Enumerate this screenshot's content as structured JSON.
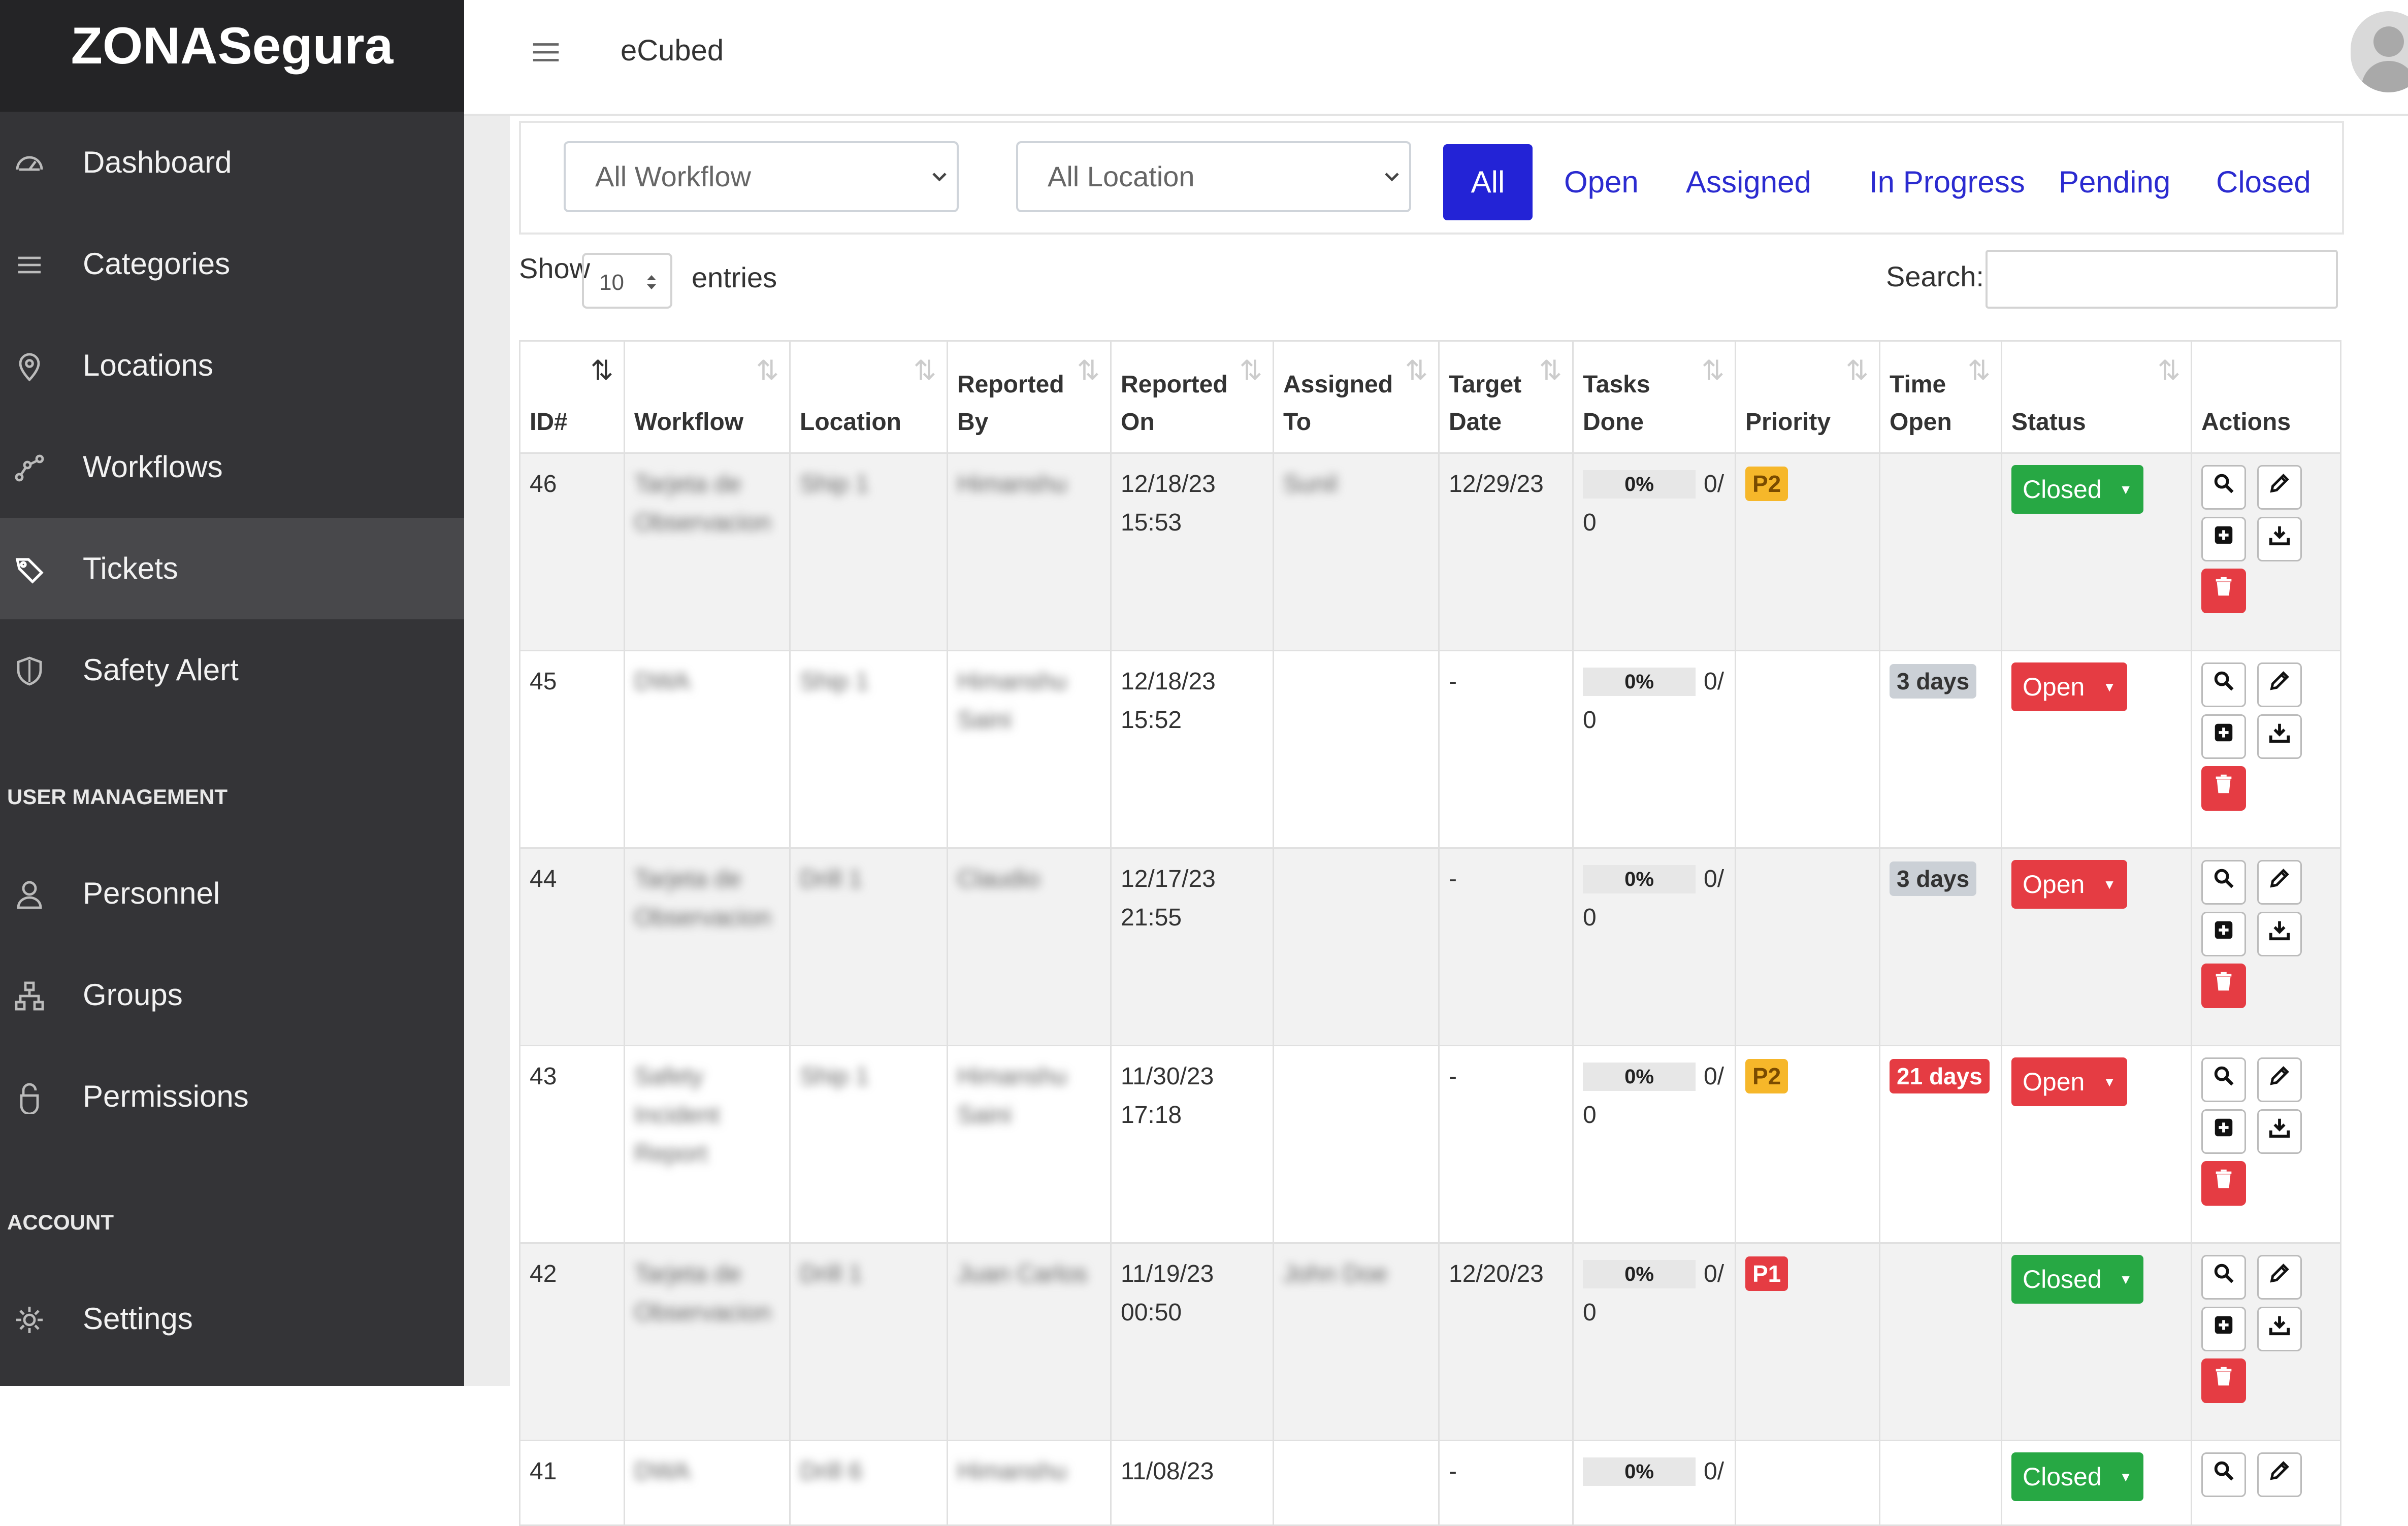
{
  "app": {
    "brand": "ZONASegura",
    "org": "eCubed"
  },
  "sidebar": {
    "items": [
      {
        "label": "Dashboard",
        "icon": "dashboard-icon"
      },
      {
        "label": "Categories",
        "icon": "list-icon"
      },
      {
        "label": "Locations",
        "icon": "map-pin-icon"
      },
      {
        "label": "Workflows",
        "icon": "workflow-icon"
      },
      {
        "label": "Tickets",
        "icon": "tags-icon",
        "active": true
      },
      {
        "label": "Safety Alert",
        "icon": "shield-icon"
      }
    ],
    "user_heading": "USER MANAGEMENT",
    "user_items": [
      {
        "label": "Personnel",
        "icon": "person-icon"
      },
      {
        "label": "Groups",
        "icon": "groups-icon"
      },
      {
        "label": "Permissions",
        "icon": "lock-icon"
      }
    ],
    "account_heading": "ACCOUNT",
    "account_items": [
      {
        "label": "Settings",
        "icon": "gear-icon"
      }
    ]
  },
  "filters": {
    "workflow": "All Workflow",
    "location": "All Location",
    "tabs": [
      "All",
      "Open",
      "Assigned",
      "In Progress",
      "Pending",
      "Closed"
    ],
    "active_tab": "All"
  },
  "length": {
    "show": "Show",
    "value": "10",
    "entries": "entries"
  },
  "search": {
    "label": "Search:",
    "value": ""
  },
  "table": {
    "headers": [
      [
        "ID#"
      ],
      [
        "Workflow"
      ],
      [
        "Location"
      ],
      [
        "Reported",
        "By"
      ],
      [
        "Reported",
        "On"
      ],
      [
        "Assigned",
        "To"
      ],
      [
        "Target",
        "Date"
      ],
      [
        "Tasks",
        "Done"
      ],
      [
        "Priority"
      ],
      [
        "Time",
        "Open"
      ],
      [
        "Status"
      ],
      [
        "Actions"
      ]
    ],
    "rows": [
      {
        "id": "46",
        "workflow": "Tarjeta de Observacion",
        "location": "Ship 1",
        "reported_by": "Himanshu",
        "reported_on": [
          "12/18/23",
          "15:53"
        ],
        "assigned_to": "Sunil",
        "target_date": "12/29/23",
        "tasks_pct": "0%",
        "tasks_a": "0/",
        "tasks_b": "0",
        "priority": "P2",
        "time_open": "",
        "status": "Closed"
      },
      {
        "id": "45",
        "workflow": "DWA",
        "location": "Ship 1",
        "reported_by": "Himanshu Saini",
        "reported_on": [
          "12/18/23",
          "15:52"
        ],
        "assigned_to": "",
        "target_date": "-",
        "tasks_pct": "0%",
        "tasks_a": "0/",
        "tasks_b": "0",
        "priority": "",
        "time_open": "3 days",
        "status": "Open"
      },
      {
        "id": "44",
        "workflow": "Tarjeta de Observacion",
        "location": "Drill 1",
        "reported_by": "Claudio",
        "reported_on": [
          "12/17/23",
          "21:55"
        ],
        "assigned_to": "",
        "target_date": "-",
        "tasks_pct": "0%",
        "tasks_a": "0/",
        "tasks_b": "0",
        "priority": "",
        "time_open": "3 days",
        "status": "Open"
      },
      {
        "id": "43",
        "workflow": "Safety Incident Report",
        "location": "Ship 1",
        "reported_by": "Himanshu Saini",
        "reported_on": [
          "11/30/23",
          "17:18"
        ],
        "assigned_to": "",
        "target_date": "-",
        "tasks_pct": "0%",
        "tasks_a": "0/",
        "tasks_b": "0",
        "priority": "P2",
        "time_open": "21 days",
        "status": "Open"
      },
      {
        "id": "42",
        "workflow": "Tarjeta de Observacion",
        "location": "Drill 1",
        "reported_by": "Juan Carlos",
        "reported_on": [
          "11/19/23",
          "00:50"
        ],
        "assigned_to": "John Doe",
        "target_date": "12/20/23",
        "tasks_pct": "0%",
        "tasks_a": "0/",
        "tasks_b": "0",
        "priority": "P1",
        "time_open": "",
        "status": "Closed"
      },
      {
        "id": "41",
        "workflow": "DWA",
        "location": "Drill 6",
        "reported_by": "Himanshu",
        "reported_on": [
          "11/08/23",
          ""
        ],
        "assigned_to": "",
        "target_date": "-",
        "tasks_pct": "0%",
        "tasks_a": "0/",
        "tasks_b": "",
        "priority": "",
        "time_open": "",
        "status": "Closed"
      }
    ]
  },
  "colors": {
    "primary": "#2323d6",
    "closed": "#27a844",
    "open": "#e53c43",
    "p2": "#f6b72a",
    "sidebar": "#343437"
  }
}
